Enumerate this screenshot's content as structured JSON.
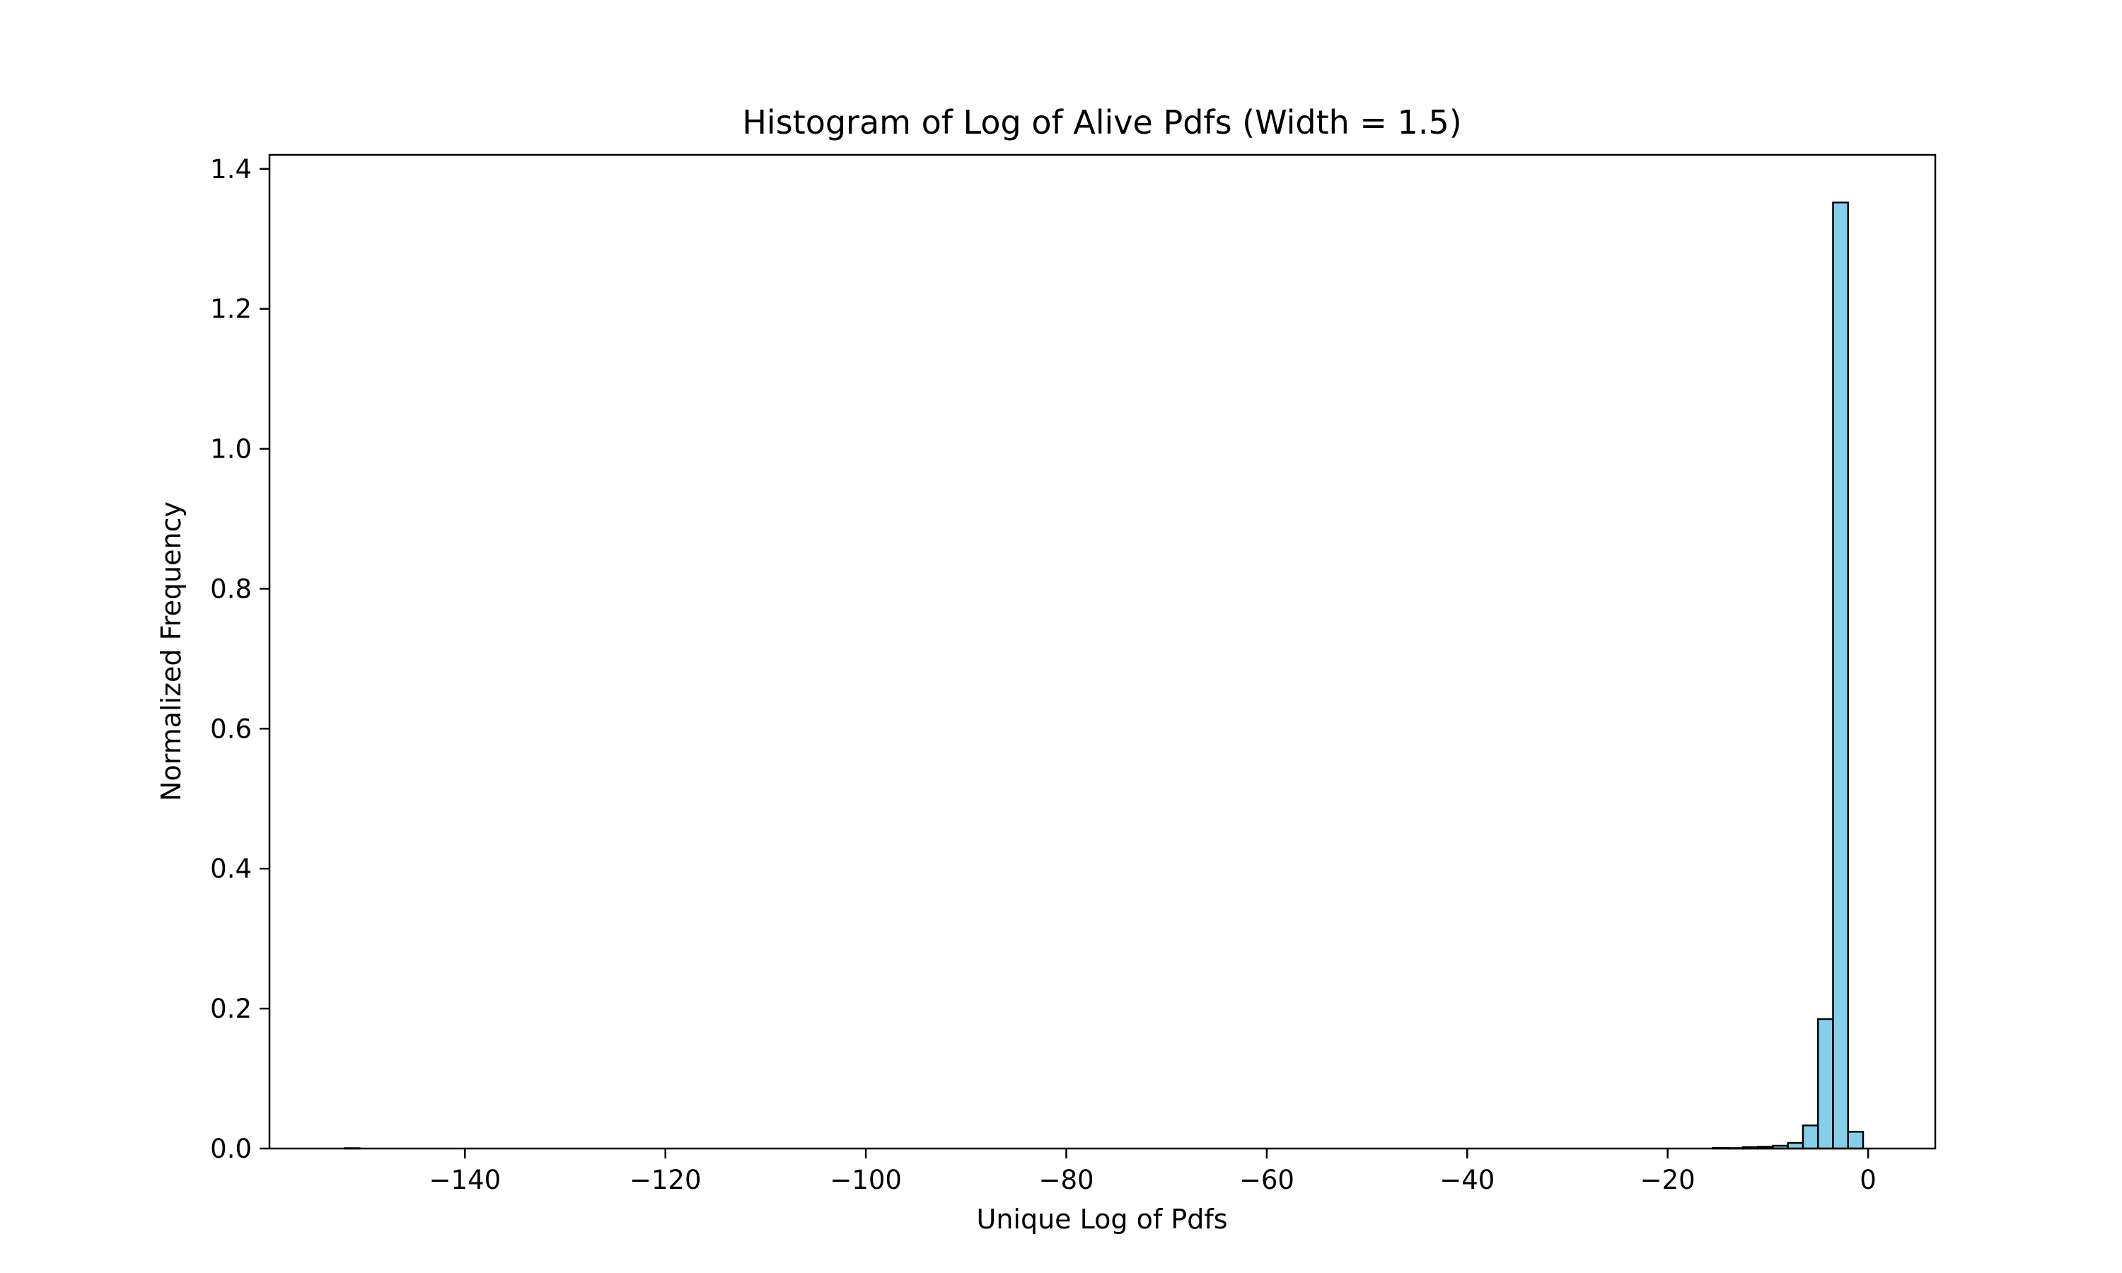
{
  "chart_data": {
    "type": "bar",
    "title": "Histogram of Log of Alive Pdfs (Width = 1.5)",
    "xlabel": "Unique Log of Pdfs",
    "ylabel": "Normalized Frequency",
    "xlim": [
      -159.5,
      6.7
    ],
    "ylim": [
      0,
      1.42
    ],
    "xticks": [
      -140,
      -120,
      -100,
      -80,
      -60,
      -40,
      -20,
      0
    ],
    "xtick_labels": [
      "−140",
      "−120",
      "−100",
      "−80",
      "−60",
      "−40",
      "−20",
      "0"
    ],
    "yticks": [
      0.0,
      0.2,
      0.4,
      0.6,
      0.8,
      1.0,
      1.2,
      1.4
    ],
    "ytick_labels": [
      "0.0",
      "0.2",
      "0.4",
      "0.6",
      "0.8",
      "1.0",
      "1.2",
      "1.4"
    ],
    "bin_width": 1.5,
    "bins": [
      {
        "start": -152.0,
        "value": 0.0005
      },
      {
        "start": -15.5,
        "value": 0.0008
      },
      {
        "start": -14.0,
        "value": 0.0006
      },
      {
        "start": -12.5,
        "value": 0.002
      },
      {
        "start": -11.0,
        "value": 0.0025
      },
      {
        "start": -9.5,
        "value": 0.004
      },
      {
        "start": -8.0,
        "value": 0.008
      },
      {
        "start": -6.5,
        "value": 0.033
      },
      {
        "start": -5.0,
        "value": 0.185
      },
      {
        "start": -3.5,
        "value": 1.352
      },
      {
        "start": -2.0,
        "value": 0.024
      }
    ],
    "bar_color": "#87ceeb",
    "edge_color": "#000000",
    "grid": false,
    "legend": false
  }
}
